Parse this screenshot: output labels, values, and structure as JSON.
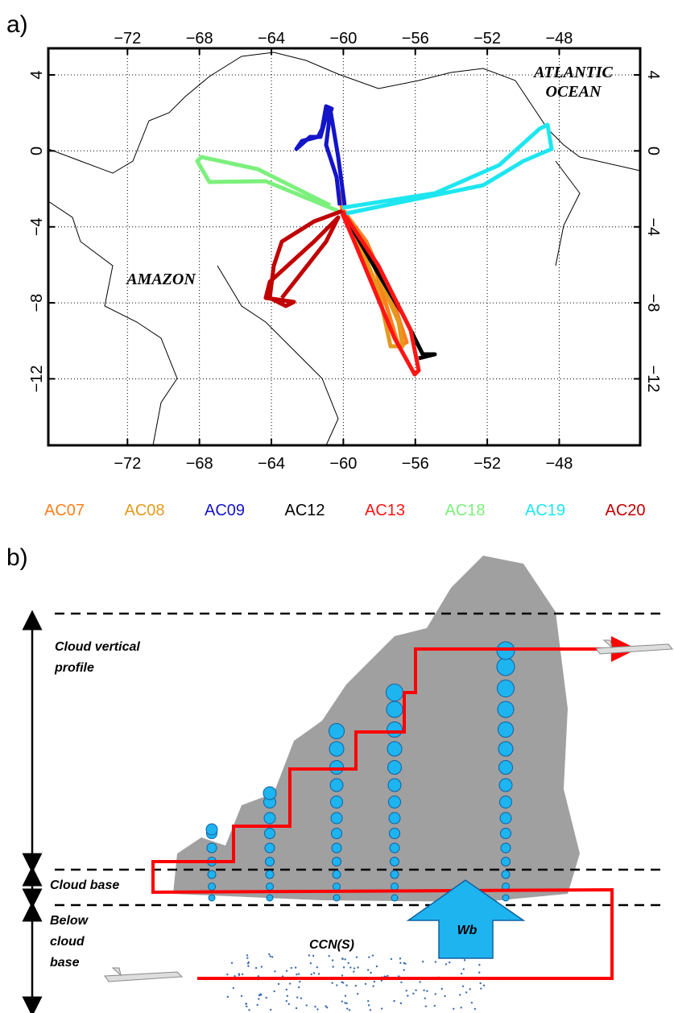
{
  "panel_a": {
    "label": "a)",
    "extent": {
      "lon": [
        -76.4,
        -43.5
      ],
      "lat": [
        -15.5,
        5.4
      ]
    },
    "lon_ticks": [
      {
        "value": -72,
        "label": "−72"
      },
      {
        "value": -68,
        "label": "−68"
      },
      {
        "value": -64,
        "label": "−64"
      },
      {
        "value": -60,
        "label": "−60"
      },
      {
        "value": -56,
        "label": "−56"
      },
      {
        "value": -52,
        "label": "−52"
      },
      {
        "value": -48,
        "label": "−48"
      }
    ],
    "lat_ticks": [
      4,
      0,
      {
        "value": -4,
        "label": "−4"
      },
      {
        "value": -8,
        "label": "−8"
      },
      {
        "value": -12,
        "label": "−12"
      }
    ],
    "annotations": [
      {
        "lines": [
          "ATLANTIC",
          "OCEAN"
        ]
      },
      {
        "lines": [
          "AMAZON"
        ]
      }
    ],
    "flights": [
      {
        "name": "AC07",
        "color": "#ff7f1e"
      },
      {
        "name": "AC08",
        "color": "#e39a1c"
      },
      {
        "name": "AC09",
        "color": "#1414c8"
      },
      {
        "name": "AC12",
        "color": "#000000"
      },
      {
        "name": "AC13",
        "color": "#ff1414"
      },
      {
        "name": "AC18",
        "color": "#7cf07c"
      },
      {
        "name": "AC19",
        "color": "#1ee6f0"
      },
      {
        "name": "AC20",
        "color": "#c00000"
      }
    ]
  },
  "panel_b": {
    "label": "b)",
    "labels": [
      {
        "lines": [
          "Cloud vertical",
          "profile"
        ]
      },
      {
        "lines": [
          "Cloud base"
        ]
      },
      {
        "lines": [
          "Below",
          "cloud",
          "base"
        ]
      },
      {
        "lines": [
          "CCN(S)"
        ]
      },
      {
        "lines": [
          "Wb"
        ]
      }
    ]
  }
}
